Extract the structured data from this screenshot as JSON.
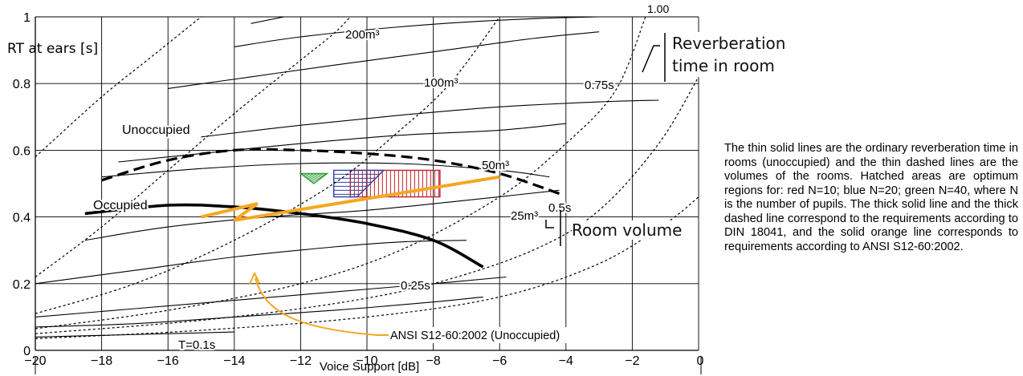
{
  "chart_data": {
    "type": "line",
    "xlabel": "Voice Support [dB]",
    "ylabel": "RT at ears [s]",
    "xlim": [
      -20,
      0
    ],
    "ylim": [
      0,
      1
    ],
    "xticks": [
      -20,
      -18,
      -16,
      -14,
      -12,
      -10,
      -8,
      -6,
      -4,
      -2,
      0
    ],
    "xtick_labels": [
      "−20",
      "−18",
      "−16",
      "−14",
      "−12",
      "−10",
      "−8",
      "−6",
      "−4",
      "−2",
      "0"
    ],
    "yticks": [
      0,
      0.2,
      0.4,
      0.6,
      0.8,
      1
    ],
    "ytick_labels": [
      "0",
      "0.2",
      "0.4",
      "0.6",
      "0.8",
      "1"
    ],
    "grid": true,
    "reverberation_time_curves": [
      {
        "label": "T=0.1s",
        "points": [
          [
            -20,
            0.04
          ],
          [
            -18,
            0.045
          ],
          [
            -16,
            0.05
          ],
          [
            -14,
            0.055
          ]
        ]
      },
      {
        "label": "",
        "points": [
          [
            -20,
            0.07
          ],
          [
            -17,
            0.08
          ],
          [
            -14,
            0.1
          ],
          [
            -11,
            0.12
          ],
          [
            -8,
            0.145
          ],
          [
            -6.5,
            0.16
          ]
        ]
      },
      {
        "label": "",
        "points": [
          [
            -20,
            0.1
          ],
          [
            -17,
            0.125
          ],
          [
            -14,
            0.15
          ],
          [
            -11,
            0.175
          ],
          [
            -8,
            0.2
          ],
          [
            -5.8,
            0.22
          ]
        ]
      },
      {
        "label": "0.25s",
        "points": [
          [
            -20,
            0.2
          ],
          [
            -17,
            0.24
          ],
          [
            -14,
            0.28
          ],
          [
            -11,
            0.31
          ],
          [
            -9,
            0.325
          ],
          [
            -7,
            0.33
          ]
        ]
      },
      {
        "label": "",
        "points": [
          [
            -18.5,
            0.33
          ],
          [
            -16,
            0.37
          ],
          [
            -13,
            0.4
          ],
          [
            -10,
            0.42
          ],
          [
            -7,
            0.45
          ],
          [
            -4.2,
            0.48
          ]
        ]
      },
      {
        "label": "0.5s",
        "points": [
          [
            -18,
            0.52
          ],
          [
            -15,
            0.545
          ],
          [
            -12,
            0.56
          ],
          [
            -9,
            0.56
          ],
          [
            -6,
            0.54
          ],
          [
            -4.5,
            0.52
          ]
        ]
      },
      {
        "label": "",
        "points": [
          [
            -17.5,
            0.565
          ],
          [
            -15,
            0.59
          ],
          [
            -12,
            0.62
          ],
          [
            -9,
            0.645
          ],
          [
            -6,
            0.66
          ],
          [
            -4,
            0.68
          ]
        ]
      },
      {
        "label": "0.75s",
        "points": [
          [
            -15,
            0.64
          ],
          [
            -12,
            0.675
          ],
          [
            -9,
            0.705
          ],
          [
            -6,
            0.73
          ],
          [
            -3,
            0.745
          ],
          [
            -1.2,
            0.75
          ]
        ]
      },
      {
        "label": "",
        "points": [
          [
            -16,
            0.785
          ],
          [
            -13.5,
            0.82
          ],
          [
            -11,
            0.855
          ],
          [
            -8,
            0.895
          ],
          [
            -5,
            0.935
          ],
          [
            -3,
            0.955
          ]
        ]
      },
      {
        "label": "",
        "points": [
          [
            -14,
            0.91
          ],
          [
            -12,
            0.94
          ],
          [
            -9,
            0.97
          ],
          [
            -6,
            0.99
          ],
          [
            -3,
            1.0
          ],
          [
            0,
            1.0
          ]
        ]
      },
      {
        "label": "",
        "points": [
          [
            -13.5,
            0.98
          ],
          [
            -12.5,
            1.0
          ]
        ]
      }
    ],
    "volume_curves": [
      {
        "label": "200m³",
        "points": [
          [
            -20,
            0.58
          ],
          [
            -18,
            0.76
          ],
          [
            -16.5,
            0.88
          ],
          [
            -15,
            1.0
          ]
        ]
      },
      {
        "label": "100m³",
        "points": [
          [
            -20,
            0.22
          ],
          [
            -18,
            0.37
          ],
          [
            -16,
            0.54
          ],
          [
            -14,
            0.71
          ],
          [
            -12,
            0.87
          ],
          [
            -11,
            0.95
          ],
          [
            -10.5,
            1.0
          ]
        ]
      },
      {
        "label": "50m³",
        "points": [
          [
            -20,
            0.11
          ],
          [
            -17,
            0.2
          ],
          [
            -14,
            0.33
          ],
          [
            -11,
            0.5
          ],
          [
            -9,
            0.66
          ],
          [
            -7.5,
            0.8
          ],
          [
            -6,
            1.0
          ]
        ]
      },
      {
        "label": "25m³",
        "points": [
          [
            -20,
            0.065
          ],
          [
            -16,
            0.12
          ],
          [
            -12,
            0.2
          ],
          [
            -9,
            0.3
          ],
          [
            -6,
            0.46
          ],
          [
            -4,
            0.62
          ],
          [
            -2.5,
            0.78
          ],
          [
            -1.6,
            1.0
          ]
        ]
      },
      {
        "label": "",
        "points": [
          [
            -20,
            0.05
          ],
          [
            -15,
            0.09
          ],
          [
            -11,
            0.14
          ],
          [
            -8,
            0.2
          ],
          [
            -5,
            0.3
          ],
          [
            -3,
            0.42
          ],
          [
            -1.2,
            0.62
          ],
          [
            0,
            0.82
          ]
        ]
      },
      {
        "label": "",
        "points": [
          [
            -20,
            0.035
          ],
          [
            -15,
            0.06
          ],
          [
            -10,
            0.1
          ],
          [
            -6,
            0.16
          ],
          [
            -3,
            0.26
          ],
          [
            -1,
            0.38
          ],
          [
            0,
            0.46
          ]
        ]
      }
    ],
    "din_occupied": {
      "label": "Occupied",
      "points": [
        [
          -18.5,
          0.41
        ],
        [
          -16,
          0.435
        ],
        [
          -14,
          0.43
        ],
        [
          -12,
          0.41
        ],
        [
          -10,
          0.38
        ],
        [
          -8,
          0.33
        ],
        [
          -6.5,
          0.25
        ]
      ]
    },
    "din_unoccupied": {
      "label": "Unoccupied",
      "points": [
        [
          -18,
          0.51
        ],
        [
          -16,
          0.57
        ],
        [
          -14,
          0.6
        ],
        [
          -12,
          0.6
        ],
        [
          -10,
          0.59
        ],
        [
          -8,
          0.57
        ],
        [
          -6,
          0.53
        ],
        [
          -4.2,
          0.47
        ]
      ]
    },
    "ansi": {
      "label": "ANSI S12-60:2002 (Unoccupied)",
      "points": [
        [
          -15,
          0.4
        ],
        [
          -13.3,
          0.44
        ],
        [
          -14,
          0.39
        ],
        [
          -6,
          0.52
        ]
      ]
    },
    "hatched_regions": [
      {
        "group": "red",
        "color": "#c0202a",
        "polygon": [
          [
            -10.5,
            0.54
          ],
          [
            -7.8,
            0.54
          ],
          [
            -7.8,
            0.46
          ],
          [
            -10.5,
            0.46
          ]
        ]
      },
      {
        "group": "blue",
        "color": "#3040a8",
        "polygon": [
          [
            -11,
            0.54
          ],
          [
            -9.5,
            0.54
          ],
          [
            -10.3,
            0.46
          ],
          [
            -11,
            0.46
          ]
        ]
      },
      {
        "group": "green",
        "color": "#2e9a3a",
        "polygon": [
          [
            -12,
            0.53
          ],
          [
            -11.2,
            0.53
          ],
          [
            -11.6,
            0.5
          ]
        ]
      }
    ]
  },
  "colors": {
    "orange": "#f5a623",
    "hatch_red": "#c0202a",
    "hatch_blue": "#3040a8",
    "hatch_green": "#2e9a3a"
  },
  "annotations": {
    "top_right_label_partial": "1.00",
    "reverberation_callout": "Reverberation time in room",
    "room_volume_callout": "Room volume",
    "caption": "The thin solid lines are the ordinary reverberation time in rooms (unoccupied) and the thin dashed lines are the volumes of the rooms. Hatched areas are optimum regions for: red N=10; blue N=20; green N=40, where N is the number of pupils. The thick solid line and the thick dashed line correspond to the requirements according to DIN 18041, and the solid orange line corresponds to require­ments according to ANSI S12-60:2002."
  }
}
